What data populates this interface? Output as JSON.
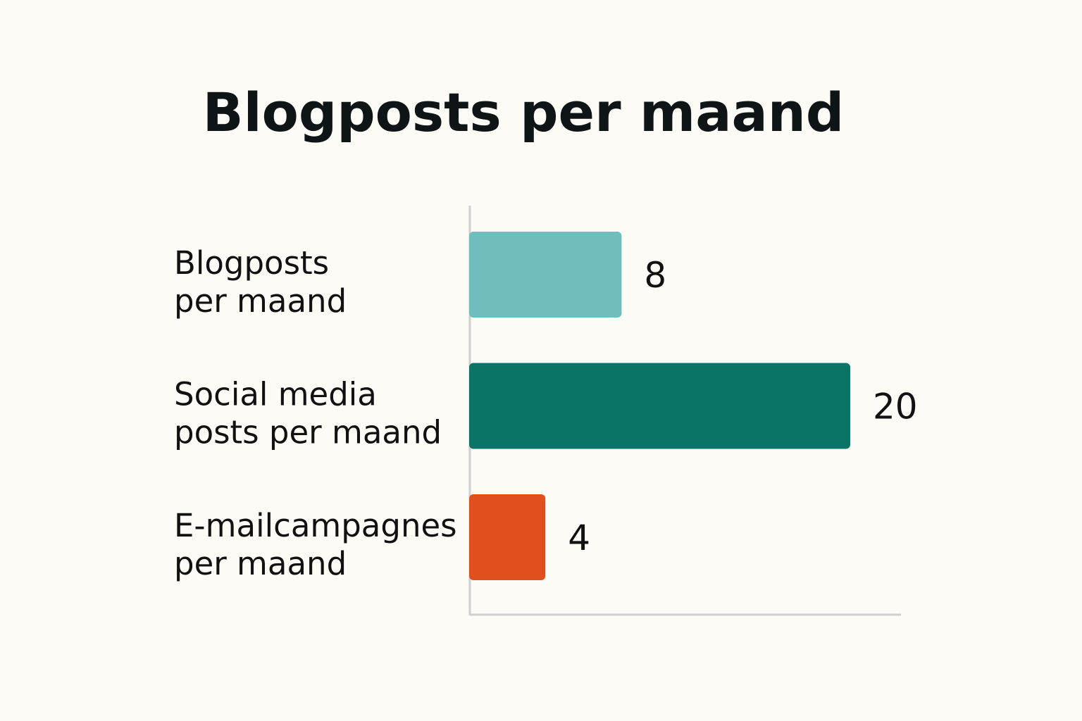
{
  "chart_data": {
    "type": "bar",
    "orientation": "horizontal",
    "title": "Blogposts per maand",
    "xlabel": "",
    "ylabel": "",
    "categories": [
      [
        "Blogposts",
        "per maand"
      ],
      [
        "Social media",
        "posts per maand"
      ],
      [
        "E-mailcampagnes",
        "per maand"
      ]
    ],
    "values": [
      8,
      20,
      4
    ],
    "colors": [
      "#70bdbd",
      "#0a7466",
      "#e0501f"
    ],
    "xlim": [
      0,
      20
    ],
    "grid": false,
    "legend": "none",
    "data_labels": [
      "8",
      "20",
      "4"
    ]
  }
}
